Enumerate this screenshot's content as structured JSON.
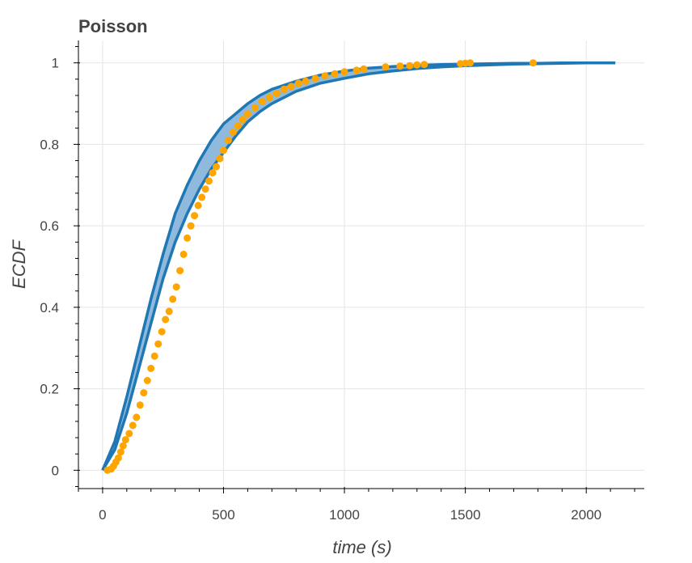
{
  "chart_data": {
    "type": "line",
    "title": "Poisson",
    "xlabel": "time (s)",
    "ylabel": "ECDF",
    "xlim": [
      -100,
      2240
    ],
    "ylim": [
      -0.045,
      1.055
    ],
    "x_ticks": [
      0,
      500,
      1000,
      1500,
      2000
    ],
    "x_tick_labels": [
      "0",
      "500",
      "1000",
      "1500",
      "2000"
    ],
    "y_ticks": [
      0,
      0.2,
      0.4,
      0.6,
      0.8,
      1
    ],
    "y_tick_labels": [
      "0",
      "0.2",
      "0.4",
      "0.6",
      "0.8",
      "1"
    ],
    "grid": true,
    "colors": {
      "band_fill": "#8fb9dd",
      "band_line": "#1f77b4",
      "points": "#ffa500",
      "grid": "#e5e5e5",
      "axis": "#000000"
    },
    "series": [
      {
        "kind": "band",
        "x": [
          0,
          50,
          100,
          150,
          200,
          250,
          300,
          350,
          400,
          450,
          500,
          550,
          600,
          650,
          700,
          800,
          900,
          1000,
          1100,
          1200,
          1300,
          1400,
          1500,
          1600,
          1700,
          1800,
          1900,
          2000,
          2120
        ],
        "upper": [
          0,
          0.07,
          0.18,
          0.3,
          0.42,
          0.53,
          0.63,
          0.7,
          0.76,
          0.81,
          0.85,
          0.875,
          0.9,
          0.92,
          0.935,
          0.955,
          0.97,
          0.98,
          0.987,
          0.991,
          0.994,
          0.996,
          0.997,
          0.998,
          0.999,
          0.999,
          1.0,
          1.0,
          1.0
        ],
        "lower": [
          0,
          0.05,
          0.14,
          0.25,
          0.36,
          0.47,
          0.56,
          0.63,
          0.69,
          0.74,
          0.78,
          0.82,
          0.855,
          0.88,
          0.9,
          0.93,
          0.95,
          0.962,
          0.973,
          0.98,
          0.986,
          0.99,
          0.993,
          0.995,
          0.997,
          0.998,
          0.999,
          1.0,
          1.0
        ]
      },
      {
        "kind": "points",
        "x": [
          20,
          35,
          45,
          55,
          65,
          75,
          85,
          95,
          110,
          125,
          140,
          155,
          170,
          185,
          200,
          215,
          230,
          245,
          260,
          275,
          290,
          305,
          320,
          335,
          350,
          365,
          380,
          395,
          410,
          425,
          440,
          455,
          470,
          485,
          500,
          520,
          540,
          560,
          580,
          600,
          630,
          660,
          690,
          720,
          750,
          780,
          810,
          840,
          880,
          920,
          960,
          1000,
          1050,
          1080,
          1170,
          1230,
          1270,
          1300,
          1330,
          1480,
          1500,
          1520,
          1780
        ],
        "y": [
          0.0,
          0.003,
          0.01,
          0.02,
          0.03,
          0.045,
          0.06,
          0.075,
          0.09,
          0.11,
          0.13,
          0.16,
          0.19,
          0.22,
          0.25,
          0.28,
          0.31,
          0.34,
          0.37,
          0.39,
          0.42,
          0.45,
          0.49,
          0.53,
          0.57,
          0.6,
          0.625,
          0.65,
          0.67,
          0.69,
          0.71,
          0.73,
          0.745,
          0.765,
          0.785,
          0.81,
          0.83,
          0.845,
          0.86,
          0.875,
          0.89,
          0.905,
          0.915,
          0.925,
          0.935,
          0.942,
          0.95,
          0.955,
          0.962,
          0.968,
          0.973,
          0.978,
          0.982,
          0.985,
          0.99,
          0.992,
          0.993,
          0.995,
          0.996,
          0.998,
          0.999,
          1.0,
          1.0
        ]
      }
    ]
  }
}
